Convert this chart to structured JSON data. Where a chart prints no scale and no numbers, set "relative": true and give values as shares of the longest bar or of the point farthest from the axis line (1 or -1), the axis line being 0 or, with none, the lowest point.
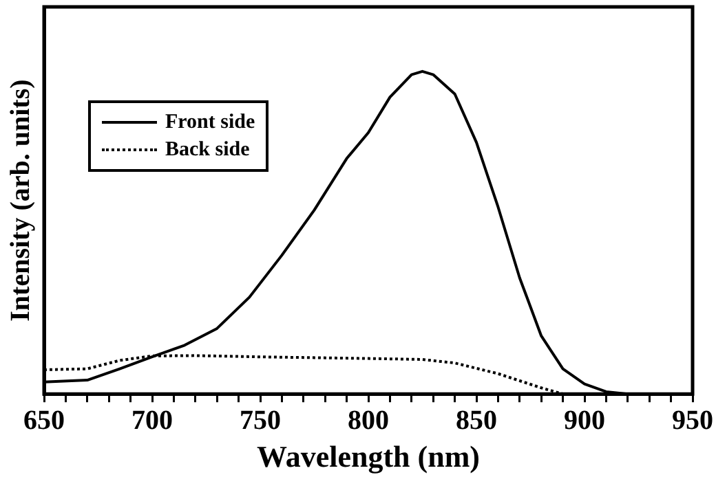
{
  "chart_data": {
    "type": "line",
    "xlabel": "Wavelength (nm)",
    "ylabel": "Intensity (arb. units)",
    "relative": true,
    "xlim": [
      650,
      950
    ],
    "xticks": [
      650,
      {
        "value": 660,
        "label": null
      },
      {
        "value": 670,
        "label": null
      },
      {
        "value": 680,
        "label": null
      },
      {
        "value": 690,
        "label": null
      },
      700,
      {
        "value": 710,
        "label": null
      },
      {
        "value": 720,
        "label": null
      },
      {
        "value": 730,
        "label": null
      },
      {
        "value": 740,
        "label": null
      },
      750,
      {
        "value": 760,
        "label": null
      },
      {
        "value": 770,
        "label": null
      },
      {
        "value": 780,
        "label": null
      },
      {
        "value": 790,
        "label": null
      },
      800,
      {
        "value": 810,
        "label": null
      },
      {
        "value": 820,
        "label": null
      },
      {
        "value": 830,
        "label": null
      },
      {
        "value": 840,
        "label": null
      },
      850,
      {
        "value": 860,
        "label": null
      },
      {
        "value": 870,
        "label": null
      },
      {
        "value": 880,
        "label": null
      },
      {
        "value": 890,
        "label": null
      },
      900,
      {
        "value": 910,
        "label": null
      },
      {
        "value": 920,
        "label": null
      },
      {
        "value": 930,
        "label": null
      },
      {
        "value": 940,
        "label": null
      },
      950
    ],
    "grid": false,
    "legend": "top left",
    "marker": "none",
    "series": [
      {
        "name": "Front side",
        "color": "#000000",
        "line_style": "solid",
        "x": [
          650,
          670,
          685,
          700,
          715,
          730,
          745,
          760,
          775,
          790,
          800,
          810,
          820,
          825,
          830,
          840,
          850,
          860,
          870,
          880,
          890,
          900,
          910,
          920
        ],
        "values": [
          0.037,
          0.043,
          0.078,
          0.115,
          0.151,
          0.203,
          0.3,
          0.43,
          0.57,
          0.73,
          0.81,
          0.92,
          0.99,
          1,
          0.99,
          0.93,
          0.78,
          0.58,
          0.36,
          0.18,
          0.078,
          0.031,
          0.007,
          0
        ]
      },
      {
        "name": "Back side",
        "color": "#000000",
        "line_style": "dotted",
        "x": [
          650,
          670,
          685,
          700,
          720,
          750,
          800,
          825,
          840,
          860,
          880,
          890
        ],
        "values": [
          0.075,
          0.078,
          0.104,
          0.118,
          0.119,
          0.115,
          0.11,
          0.107,
          0.096,
          0.063,
          0.019,
          0
        ]
      }
    ]
  }
}
